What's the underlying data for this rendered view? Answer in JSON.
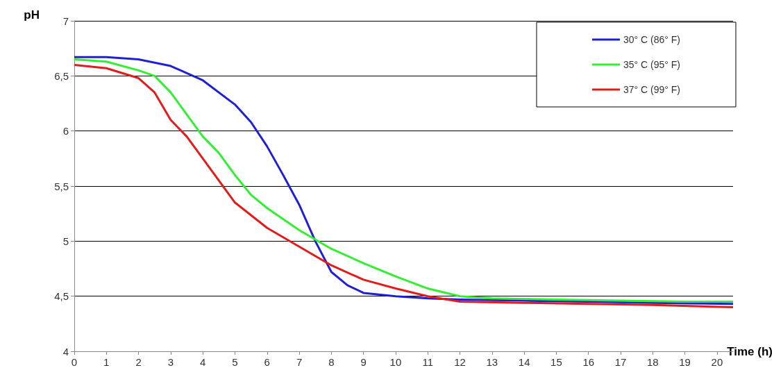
{
  "chart_data": {
    "type": "line",
    "xlabel": "Time (h)",
    "ylabel": "pH",
    "xlim": [
      0,
      20.5
    ],
    "xticks": [
      0,
      1,
      2,
      3,
      4,
      5,
      6,
      7,
      8,
      9,
      10,
      11,
      12,
      13,
      14,
      15,
      16,
      17,
      18,
      19,
      20
    ],
    "ylim": [
      4,
      7
    ],
    "yticks": [
      4,
      {
        "value": 4.5,
        "label": "4,5"
      },
      5,
      {
        "value": 5.5,
        "label": "5,5"
      },
      6,
      {
        "value": 6.5,
        "label": "6,5"
      },
      7
    ],
    "grid": "y",
    "legend": "top right",
    "marker": "none",
    "line_style": "solid",
    "series": [
      {
        "name": "30° C (86° F)",
        "color": "#1f1fd6",
        "x": [
          0,
          1,
          2,
          3,
          4,
          5,
          5.5,
          6,
          6.5,
          7,
          7.5,
          8,
          8.5,
          9,
          10,
          11,
          12,
          14,
          16,
          18,
          20.5
        ],
        "values": [
          6.67,
          6.67,
          6.65,
          6.59,
          6.46,
          6.24,
          6.08,
          5.86,
          5.6,
          5.33,
          5.0,
          4.72,
          4.6,
          4.53,
          4.5,
          4.48,
          4.47,
          4.46,
          4.45,
          4.44,
          4.43
        ]
      },
      {
        "name": "35° C (95° F)",
        "color": "#33ee33",
        "x": [
          0,
          1,
          2,
          2.5,
          3,
          3.5,
          4,
          4.5,
          5,
          5.5,
          6,
          7,
          8,
          9,
          10,
          11,
          12,
          13,
          15,
          17,
          19,
          20.5
        ],
        "values": [
          6.65,
          6.63,
          6.55,
          6.5,
          6.35,
          6.15,
          5.95,
          5.8,
          5.6,
          5.42,
          5.3,
          5.1,
          4.93,
          4.8,
          4.68,
          4.57,
          4.5,
          4.48,
          4.47,
          4.46,
          4.45,
          4.45
        ]
      },
      {
        "name": "37° C (99° F)",
        "color": "#e21b1b",
        "x": [
          0,
          1,
          2,
          2.5,
          3,
          3.5,
          4,
          4.5,
          5,
          6,
          7,
          8,
          9,
          10,
          11,
          12,
          14,
          16,
          18,
          20.5
        ],
        "values": [
          6.6,
          6.57,
          6.48,
          6.35,
          6.1,
          5.95,
          5.75,
          5.55,
          5.35,
          5.12,
          4.95,
          4.78,
          4.65,
          4.57,
          4.5,
          4.45,
          4.44,
          4.43,
          4.42,
          4.4
        ]
      }
    ]
  }
}
